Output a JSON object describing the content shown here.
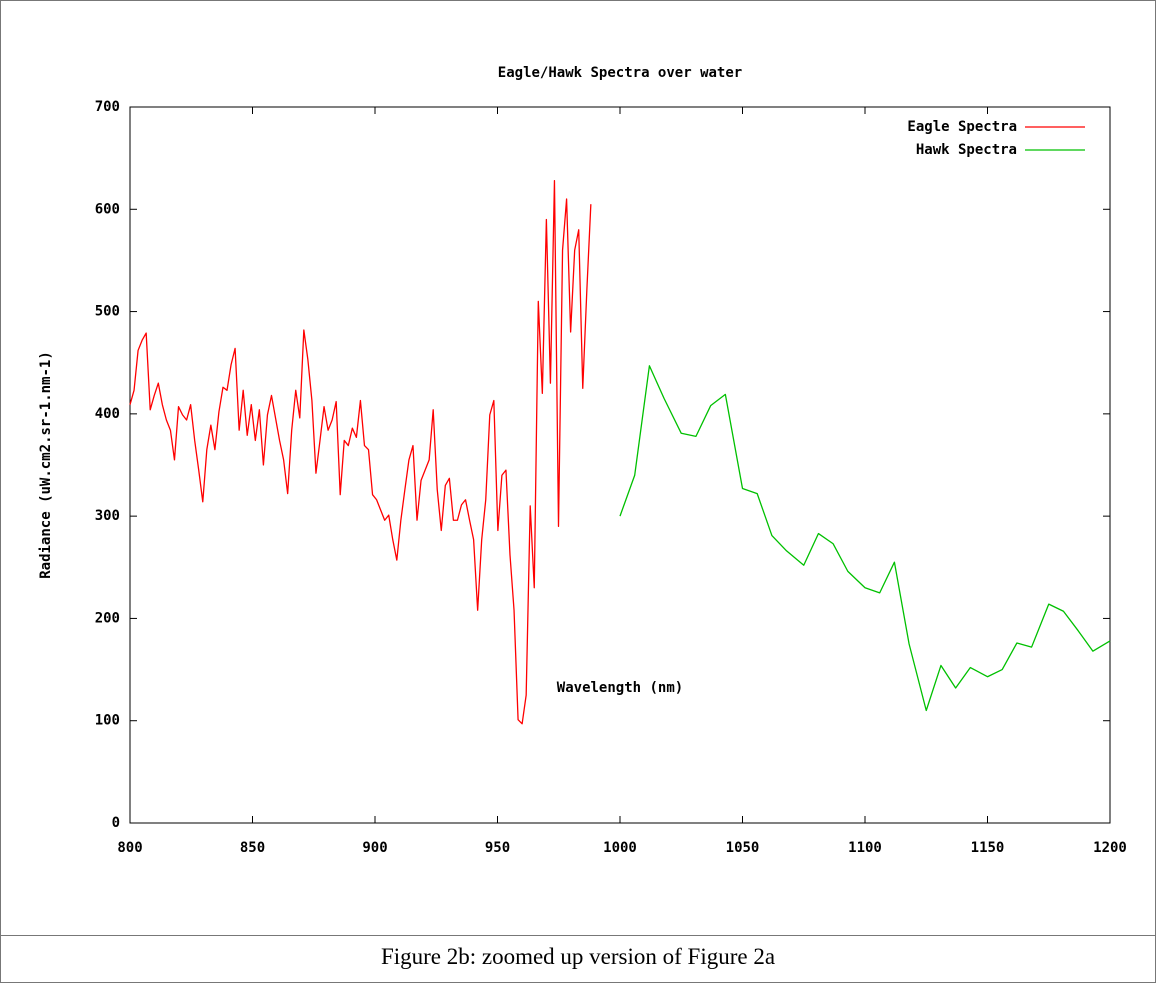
{
  "chart_data": {
    "type": "line",
    "title": "Eagle/Hawk Spectra over water",
    "x_label": "Wavelength (nm)",
    "y_label": "Radiance (uW.cm2.sr-1.nm-1)",
    "xlim": [
      800,
      1200
    ],
    "xticks": [
      800,
      850,
      900,
      950,
      1000,
      1050,
      1100,
      1150,
      1200
    ],
    "ylim": [
      0,
      700
    ],
    "yticks": [
      0,
      100,
      200,
      300,
      400,
      500,
      600,
      700
    ],
    "grid": false,
    "legend": "top-right",
    "series": [
      {
        "name": "Eagle Spectra",
        "color": "#ff0000",
        "x": [
          800,
          801.65,
          803.3,
          804.95,
          806.6,
          808.25,
          809.9,
          811.55,
          813.2,
          814.85,
          816.5,
          818.15,
          819.8,
          821.45,
          823.1,
          824.75,
          826.4,
          828.05,
          829.7,
          831.35,
          833,
          834.65,
          836.3,
          837.95,
          839.6,
          841.25,
          842.9,
          844.55,
          846.2,
          847.85,
          849.5,
          851.15,
          852.8,
          854.45,
          856.1,
          857.75,
          859.4,
          861.05,
          862.7,
          864.35,
          866,
          867.65,
          869.3,
          870.95,
          872.6,
          874.25,
          875.9,
          877.55,
          879.2,
          880.85,
          882.5,
          884.15,
          885.8,
          887.45,
          889.1,
          890.75,
          892.4,
          894.05,
          895.7,
          897.35,
          899,
          900.65,
          902.3,
          903.95,
          905.6,
          907.25,
          908.9,
          910.55,
          912.2,
          913.85,
          915.5,
          917.15,
          918.8,
          920.45,
          922.1,
          923.75,
          925.4,
          927.05,
          928.7,
          930.35,
          932,
          933.65,
          935.3,
          936.95,
          938.6,
          940.25,
          941.9,
          943.55,
          945.2,
          946.85,
          948.5,
          950.15,
          951.8,
          953.45,
          955.1,
          956.75,
          958.4,
          960.05,
          961.7,
          963.35,
          965,
          966.65,
          968.3,
          969.95,
          971.6,
          973.25,
          974.9,
          976.55,
          978.2,
          979.85,
          981.5,
          983.15,
          984.8,
          986.45,
          988.1
        ],
        "values": [
          409,
          423,
          462,
          472,
          479,
          404,
          418,
          430,
          409,
          394,
          384,
          355,
          407,
          399,
          394,
          409,
          374,
          345,
          314,
          365,
          389,
          365,
          402,
          426,
          423,
          448,
          464,
          384,
          423,
          379,
          409,
          374,
          404,
          350,
          399,
          418,
          396,
          374,
          355,
          322,
          384,
          423,
          396,
          482,
          453,
          413,
          342,
          374,
          407,
          384,
          394,
          412,
          321,
          374,
          369,
          386,
          377,
          413,
          369,
          365,
          321,
          316,
          306,
          296,
          301,
          277,
          257,
          296,
          326,
          355,
          369,
          296,
          335,
          345,
          355,
          404,
          326,
          286,
          330,
          337,
          296,
          296,
          311,
          316,
          296,
          277,
          208,
          277,
          316,
          399,
          413,
          286,
          340,
          345,
          262,
          208,
          101,
          97,
          125,
          310,
          230,
          510,
          420,
          590,
          430,
          628,
          290,
          560,
          610,
          480,
          560,
          580,
          425,
          520,
          605
        ]
      },
      {
        "name": "Hawk Spectra",
        "color": "#00c000",
        "x": [
          1000,
          1006,
          1012,
          1018,
          1025,
          1031,
          1037,
          1043,
          1050,
          1056,
          1062,
          1068,
          1075,
          1081,
          1087,
          1093,
          1100,
          1106,
          1112,
          1118,
          1125,
          1131,
          1137,
          1143,
          1150,
          1156,
          1162,
          1168,
          1175,
          1181,
          1187,
          1193,
          1200
        ],
        "values": [
          300,
          340,
          447,
          415,
          381,
          378,
          408,
          419,
          327,
          322,
          281,
          266,
          252,
          283,
          273,
          246,
          230,
          225,
          255,
          175,
          110,
          154,
          132,
          152,
          143,
          150,
          176,
          172,
          214,
          207,
          188,
          168,
          178
        ]
      }
    ]
  },
  "caption": "Figure 2b: zoomed up version of Figure 2a"
}
